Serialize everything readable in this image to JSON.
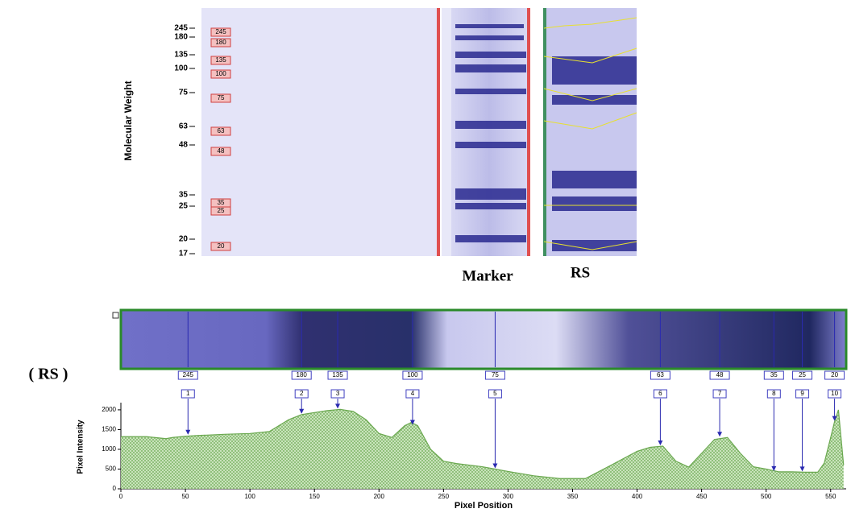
{
  "gel": {
    "y_axis_label": "Molecular Weight",
    "ticks": [
      "245",
      "180",
      "135",
      "100",
      "75",
      "63",
      "48",
      "35",
      "25",
      "20",
      "17"
    ],
    "marker_boxes": [
      "245",
      "180",
      "135",
      "100",
      "75",
      "63",
      "48",
      "35",
      "25",
      "20"
    ],
    "lanes": [
      "Marker",
      "RS"
    ]
  },
  "strip": {
    "title": "( RS )",
    "bands": [
      "245",
      "180",
      "135",
      "100",
      "75",
      "63",
      "48",
      "35",
      "25",
      "20"
    ]
  },
  "chart_data": {
    "type": "area",
    "x_label": "Pixel Position",
    "y_label": "Pixel Intensity",
    "x": [
      0,
      20,
      35,
      40,
      50,
      60,
      80,
      100,
      115,
      130,
      140,
      150,
      160,
      170,
      180,
      190,
      200,
      210,
      220,
      225,
      230,
      240,
      250,
      260,
      280,
      290,
      300,
      320,
      340,
      360,
      380,
      400,
      410,
      420,
      430,
      440,
      450,
      460,
      470,
      480,
      490,
      500,
      510,
      520,
      530,
      540,
      545,
      550,
      553,
      556,
      560
    ],
    "values": [
      1320,
      1320,
      1270,
      1300,
      1330,
      1350,
      1380,
      1400,
      1450,
      1750,
      1880,
      1930,
      1980,
      2010,
      1960,
      1750,
      1400,
      1300,
      1600,
      1680,
      1600,
      1000,
      700,
      640,
      560,
      500,
      440,
      330,
      260,
      260,
      600,
      950,
      1050,
      1080,
      700,
      550,
      900,
      1250,
      1300,
      900,
      560,
      500,
      430,
      430,
      420,
      420,
      650,
      1300,
      1700,
      2000,
      600
    ],
    "color": "#6aa84f",
    "peaks": [
      {
        "label": "1",
        "x": 52
      },
      {
        "label": "2",
        "x": 140
      },
      {
        "label": "3",
        "x": 168
      },
      {
        "label": "4",
        "x": 226
      },
      {
        "label": "5",
        "x": 290
      },
      {
        "label": "6",
        "x": 418
      },
      {
        "label": "7",
        "x": 464
      },
      {
        "label": "8",
        "x": 506
      },
      {
        "label": "9",
        "x": 528
      },
      {
        "label": "10",
        "x": 553
      }
    ],
    "xlim": [
      0,
      562
    ],
    "ylim": [
      0,
      2100
    ],
    "xticks": [
      0,
      50,
      100,
      150,
      200,
      250,
      300,
      350,
      400,
      450,
      500,
      550
    ],
    "yticks": [
      0,
      500,
      1000,
      1500,
      2000
    ]
  }
}
